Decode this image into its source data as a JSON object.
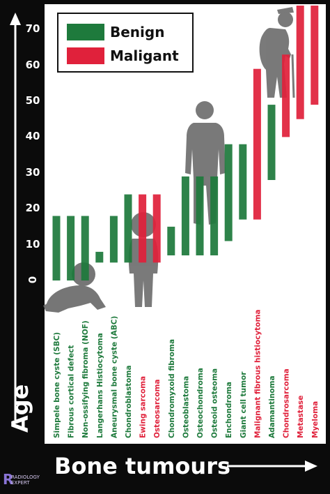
{
  "chart_data": {
    "type": "bar",
    "ylabel": "Age",
    "xlabel": "Bone tumours",
    "yticks": [
      0,
      10,
      20,
      30,
      40,
      50,
      60,
      70
    ],
    "ylim": [
      -5,
      75
    ],
    "legend": [
      {
        "name": "Benign",
        "color": "#1e7a3c"
      },
      {
        "name": "Maligant",
        "color": "#e0213b"
      }
    ],
    "legend_position": "top-left",
    "categories": [
      "Simpele bone cyste (SBC)",
      "Fibrous cortical defect",
      "Non-ossifying fibroma (NOF)",
      "Langerhans Histiocytoma",
      "Aneurysmal bone cyste (ABC)",
      "Chondroblastoma",
      "Ewing sarcoma",
      "Osteosarcoma",
      "Chondromyxoid fibroma",
      "Osteoblastoma",
      "Osteochondroma",
      "Osteoid osteoma",
      "Enchondroma",
      "Giant cell tumor",
      "Malignant fibrous histiocytoma",
      "Adamantinoma",
      "Chondrosarcoma",
      "Metastase",
      "Myeloma"
    ],
    "series": [
      {
        "name": "Benign",
        "color": "#1e7a3c",
        "ranges": [
          [
            0,
            18
          ],
          [
            0,
            18
          ],
          [
            0,
            18
          ],
          [
            5,
            8
          ],
          [
            5,
            18
          ],
          [
            5,
            24
          ],
          null,
          null,
          [
            7,
            15
          ],
          [
            7,
            29
          ],
          [
            7,
            29
          ],
          [
            7,
            29
          ],
          [
            11,
            38
          ],
          [
            17,
            38
          ],
          null,
          [
            28,
            49
          ],
          null,
          null,
          null
        ]
      },
      {
        "name": "Maligant",
        "color": "#e0213b",
        "ranges": [
          null,
          null,
          null,
          null,
          null,
          null,
          [
            5,
            24
          ],
          [
            5,
            24
          ],
          null,
          null,
          null,
          null,
          null,
          null,
          [
            17,
            59
          ],
          null,
          [
            40,
            63
          ],
          [
            45,
            79
          ],
          [
            49,
            79
          ]
        ]
      }
    ]
  }
}
